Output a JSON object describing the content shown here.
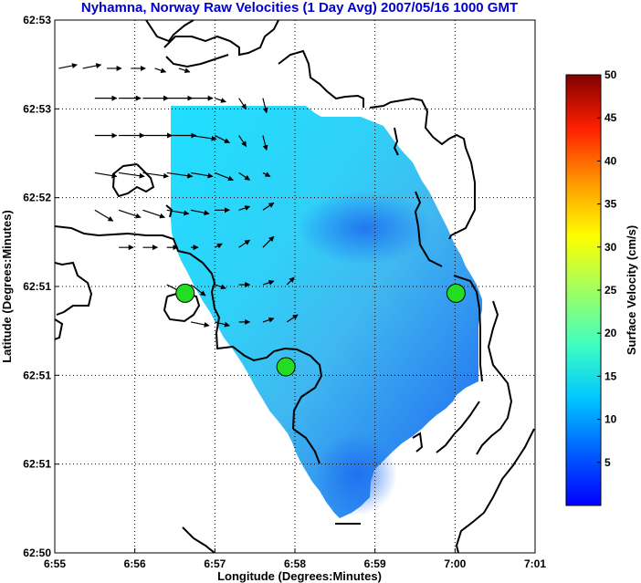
{
  "chart_data": {
    "type": "heatmap",
    "title": "Nyhamna, Norway Raw Velocities (1 Day Avg) 2007/05/16 1000 GMT",
    "xlabel": "Longitude (Degrees:Minutes)",
    "ylabel": "Latitude (Degrees:Minutes)",
    "x_ticks": [
      "6:55",
      "6:56",
      "6:57",
      "6:58",
      "6:59",
      "7:00",
      "7:01"
    ],
    "y_ticks": [
      "62:50",
      "62:51",
      "62:51",
      "62:51",
      "62:52",
      "62:53",
      "62:53"
    ],
    "grid": true,
    "colorbar": {
      "label": "Surface Velocity (cm/s)",
      "ticks": [
        5,
        10,
        15,
        20,
        25,
        30,
        35,
        40,
        45,
        50
      ],
      "range": [
        0,
        50
      ],
      "colormap": "jet"
    },
    "stations": [
      {
        "lon": 6.9438,
        "lat": 62.8577
      },
      {
        "lon": 6.9648,
        "lat": 62.8508
      },
      {
        "lon": 7.0002,
        "lat": 62.8577
      }
    ],
    "velocity_field": {
      "units": "cm/s",
      "description_speed_range": [
        2,
        12
      ],
      "rows": [
        {
          "lat": 62.8788,
          "lons": [
            6.9175,
            6.9225,
            6.9275,
            6.9325,
            6.9375,
            6.9425
          ],
          "u": [
            5,
            5,
            4,
            4,
            3,
            3
          ],
          "v": [
            1,
            1,
            0,
            0,
            -1,
            -1
          ]
        },
        {
          "lat": 62.876,
          "lons": [
            6.925,
            6.93,
            6.935,
            6.94,
            6.945,
            6.95,
            6.955,
            6.96
          ],
          "u": [
            6,
            6,
            7,
            7,
            6,
            3,
            2,
            1
          ],
          "v": [
            0,
            0,
            0,
            0,
            0,
            -1,
            -3,
            -4
          ]
        },
        {
          "lat": 62.8725,
          "lons": [
            6.925,
            6.93,
            6.935,
            6.94,
            6.945,
            6.95,
            6.955,
            6.96
          ],
          "u": [
            6,
            7,
            8,
            8,
            7,
            4,
            2,
            1
          ],
          "v": [
            0,
            0,
            0,
            0,
            -1,
            -2,
            -3,
            -4
          ]
        },
        {
          "lat": 62.869,
          "lons": [
            6.925,
            6.93,
            6.935,
            6.94,
            6.945,
            6.95,
            6.955,
            6.96
          ],
          "u": [
            6,
            7,
            7,
            7,
            6,
            5,
            3,
            2
          ],
          "v": [
            -1,
            -1,
            -1,
            -1,
            -1,
            -2,
            -2,
            -1
          ]
        },
        {
          "lat": 62.8655,
          "lons": [
            6.925,
            6.93,
            6.935,
            6.94,
            6.945,
            6.95,
            6.955,
            6.96
          ],
          "u": [
            5,
            6,
            6,
            6,
            5,
            4,
            3,
            3
          ],
          "v": [
            -3,
            -2,
            -2,
            -1,
            -1,
            0,
            1,
            2
          ]
        },
        {
          "lat": 62.862,
          "lons": [
            6.93,
            6.935,
            6.94,
            6.945,
            6.95,
            6.955,
            6.96
          ],
          "u": [
            4,
            4,
            3,
            2,
            2,
            3,
            3
          ],
          "v": [
            0,
            0,
            0,
            0,
            1,
            2,
            3
          ]
        },
        {
          "lat": 62.8585,
          "lons": [
            6.94,
            6.945,
            6.95,
            6.955,
            6.96,
            6.965
          ],
          "u": [
            4,
            4,
            3,
            3,
            3,
            2
          ],
          "v": [
            -2,
            -3,
            -1,
            0,
            1,
            2
          ]
        },
        {
          "lat": 62.855,
          "lons": [
            6.945,
            6.95,
            6.955,
            6.96,
            6.965
          ],
          "u": [
            5,
            4,
            3,
            3,
            3
          ],
          "v": [
            -1,
            -1,
            0,
            1,
            2
          ]
        }
      ]
    }
  }
}
